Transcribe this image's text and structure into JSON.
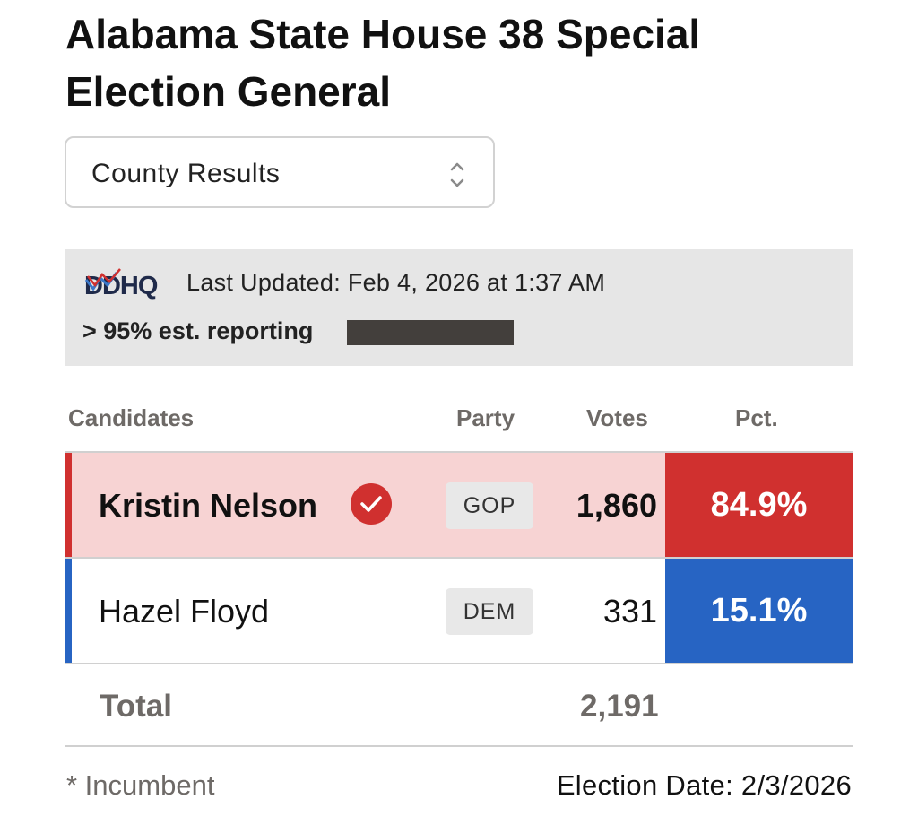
{
  "title": "Alabama State House 38 Special Election General",
  "view_select": {
    "selected": "County Results"
  },
  "status_bar": {
    "logo_text": "DDHQ",
    "last_updated": "Last Updated: Feb 4, 2026 at 1:37 AM",
    "reporting": "> 95% est. reporting",
    "reporting_progress": 1.0
  },
  "table": {
    "headers": {
      "candidates": "Candidates",
      "party": "Party",
      "votes": "Votes",
      "pct": "Pct."
    },
    "rows": [
      {
        "name": "Kristin Nelson",
        "winner": true,
        "party": "GOP",
        "votes": "1,860",
        "pct": "84.9%",
        "color": "#d0302f"
      },
      {
        "name": "Hazel Floyd",
        "winner": false,
        "party": "DEM",
        "votes": "331",
        "pct": "15.1%",
        "color": "#2764c3"
      }
    ],
    "total": {
      "label": "Total",
      "votes": "2,191"
    }
  },
  "footer": {
    "incumbent_note": "* Incumbent",
    "election_date": "Election Date: 2/3/2026"
  },
  "colors": {
    "gop": "#d0302f",
    "dem": "#2764c3",
    "gop_row_bg": "#f7d3d3"
  }
}
